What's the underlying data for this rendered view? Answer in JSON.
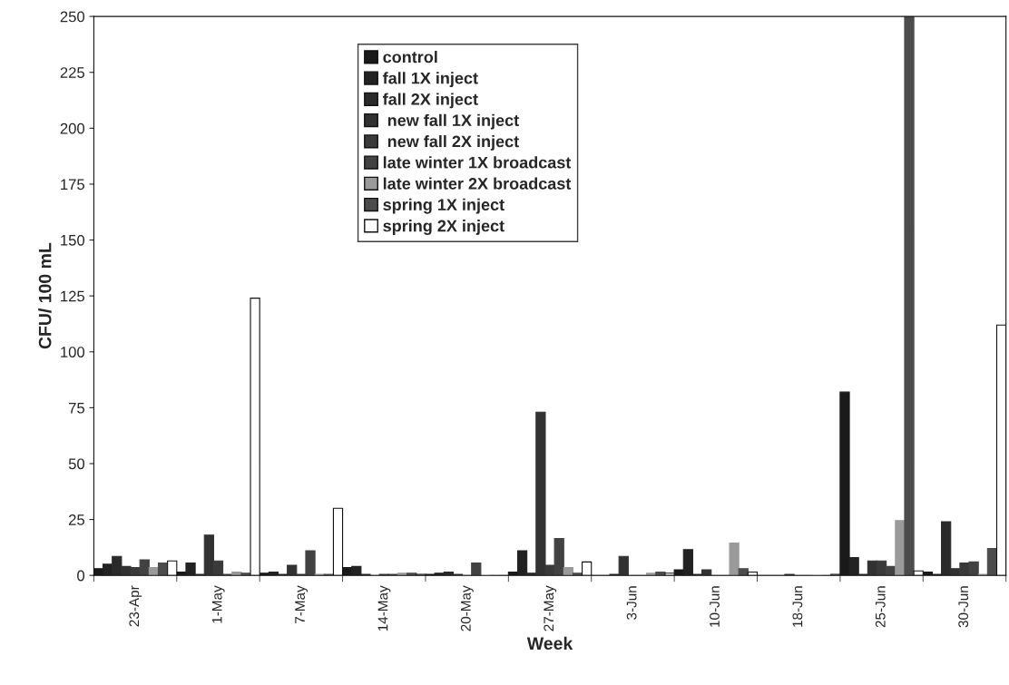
{
  "chart_data": {
    "type": "bar",
    "xlabel": "Week",
    "ylabel": "CFU/ 100 mL",
    "categories": [
      "23-Apr",
      "1-May",
      "7-May",
      "14-May",
      "20-May",
      "27-May",
      "3-Jun",
      "10-Jun",
      "18-Jun",
      "25-Jun",
      "30-Jun"
    ],
    "series": [
      {
        "name": "control",
        "color": "#1a1a1a",
        "values": [
          3,
          1.5,
          1,
          3.5,
          0.5,
          1.5,
          0,
          2.5,
          0,
          82,
          1.5
        ]
      },
      {
        "name": "fall 1X inject",
        "color": "#222222",
        "values": [
          5,
          5.5,
          1.5,
          4,
          1,
          11,
          0,
          11.5,
          0,
          8,
          0.5
        ]
      },
      {
        "name": "fall 2X inject",
        "color": "#2a2a2a",
        "values": [
          8.5,
          0.5,
          0.5,
          0.5,
          1.5,
          1,
          0.5,
          0.5,
          0,
          0.5,
          24
        ]
      },
      {
        "name": " new fall 1X inject",
        "color": "#323232",
        "values": [
          4,
          18,
          4.5,
          0,
          0.5,
          73,
          8.5,
          2.5,
          0.5,
          6.5,
          3
        ]
      },
      {
        "name": " new fall 2X inject",
        "color": "#3a3a3a",
        "values": [
          3.5,
          6.5,
          0.5,
          0.5,
          0,
          4.5,
          0,
          0,
          0,
          6.5,
          5.5
        ]
      },
      {
        "name": "late winter 1X broadcast",
        "color": "#424242",
        "values": [
          7,
          0.5,
          11,
          0.5,
          5.5,
          16.5,
          0,
          0,
          0,
          4,
          6
        ]
      },
      {
        "name": "late winter 2X broadcast",
        "color": "#9a9a9a",
        "values": [
          3.5,
          1.5,
          0.5,
          1,
          0,
          3.5,
          1,
          14.5,
          0,
          24.5,
          0.5
        ]
      },
      {
        "name": "spring 1X inject",
        "color": "#4c4c4c",
        "values": [
          5.5,
          1,
          0.5,
          1,
          0,
          1,
          1.5,
          3,
          0,
          250,
          12
        ]
      },
      {
        "name": "spring 2X inject",
        "color": "#ffffff",
        "values": [
          6.5,
          124,
          30,
          0.5,
          0,
          6,
          1,
          1.5,
          0.5,
          2,
          112
        ]
      }
    ],
    "ylim": [
      0,
      250
    ],
    "yticks": [
      0,
      25,
      50,
      75,
      100,
      125,
      150,
      175,
      200,
      225,
      250
    ],
    "legend": "top",
    "grid": false
  }
}
